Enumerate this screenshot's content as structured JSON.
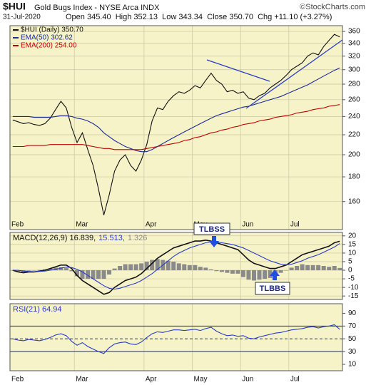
{
  "chart_data": [
    {
      "type": "line",
      "symbol": "$HUI",
      "title": "Gold Bugs Index - NYSE Arca INDX",
      "source": "©StockCharts.com",
      "date": "31-Jul-2020",
      "quote": "Open 345.40  High 352.13  Low 343.34  Close 350.70  Chg +11.10 (+3.27%)",
      "log_scale": true,
      "grid": true,
      "legend_layout": "column",
      "categories": [
        "Feb",
        null,
        null,
        null,
        null,
        null,
        null,
        null,
        null,
        null,
        null,
        null,
        "Mar",
        null,
        null,
        null,
        null,
        null,
        null,
        null,
        null,
        null,
        null,
        null,
        null,
        "Apr",
        null,
        null,
        null,
        null,
        null,
        null,
        null,
        null,
        "May",
        null,
        null,
        null,
        null,
        null,
        null,
        null,
        null,
        "Jun",
        null,
        null,
        null,
        null,
        null,
        null,
        null,
        null,
        "Jul",
        null,
        null,
        null,
        null,
        null,
        null,
        null,
        null,
        null
      ],
      "ylim": [
        140,
        370
      ],
      "yticks": [
        160,
        180,
        200,
        220,
        240,
        260,
        280,
        300,
        320,
        340,
        360
      ],
      "series": [
        {
          "name": "$HUI (Daily) 350.70",
          "color": "#111111",
          "values": [
            236,
            234,
            232,
            233,
            231,
            230,
            232,
            238,
            248,
            258,
            250,
            228,
            212,
            222,
            205,
            190,
            170,
            150,
            165,
            185,
            195,
            200,
            190,
            185,
            195,
            210,
            235,
            250,
            248,
            258,
            265,
            270,
            268,
            272,
            278,
            275,
            285,
            295,
            285,
            280,
            270,
            272,
            268,
            270,
            262,
            260,
            265,
            268,
            275,
            280,
            285,
            292,
            300,
            305,
            310,
            320,
            325,
            322,
            335,
            345,
            355,
            350.7
          ]
        },
        {
          "name": "EMA(50) 302.62",
          "color": "#1c2a99",
          "values": [
            240,
            240,
            240,
            240,
            239,
            239,
            239,
            239,
            240,
            241,
            241,
            240,
            238,
            237,
            235,
            232,
            228,
            222,
            218,
            214,
            211,
            208,
            206,
            204,
            203,
            203,
            205,
            208,
            211,
            214,
            217,
            220,
            223,
            226,
            229,
            232,
            235,
            238,
            241,
            243,
            245,
            247,
            249,
            251,
            252,
            254,
            256,
            258,
            260,
            262,
            264,
            267,
            270,
            273,
            276,
            279,
            283,
            287,
            291,
            295,
            299,
            302.62
          ]
        },
        {
          "name": "EMA(200) 254.00",
          "color": "#c00000",
          "values": [
            208,
            208,
            208,
            209,
            209,
            209,
            209,
            210,
            210,
            210,
            210,
            210,
            210,
            210,
            209,
            208,
            207,
            206,
            206,
            205,
            205,
            205,
            205,
            205,
            205,
            206,
            207,
            208,
            209,
            210,
            211,
            212,
            214,
            215,
            217,
            218,
            220,
            222,
            223,
            225,
            226,
            228,
            229,
            231,
            232,
            233,
            235,
            236,
            237,
            239,
            240,
            241,
            242,
            244,
            245,
            246,
            248,
            249,
            250,
            252,
            253,
            254
          ]
        }
      ]
    },
    {
      "type": "line",
      "grid": true,
      "legend_layout": "row",
      "annotations": [
        "TLBSS",
        "TLBBS"
      ],
      "ylim": [
        -17,
        22
      ],
      "yticks": [
        -15,
        -10,
        -5,
        0,
        5,
        10,
        15,
        20
      ],
      "series": [
        {
          "name": "MACD(12,26,9) 16.839,",
          "color": "#111111",
          "kind": "line",
          "values": [
            0,
            -1,
            -1.5,
            -1,
            -1,
            -0.5,
            0,
            1,
            2,
            3,
            3,
            1,
            -3,
            -6,
            -8,
            -10,
            -12,
            -14,
            -13,
            -10,
            -8,
            -6,
            -5,
            -4,
            -2,
            1,
            4,
            7,
            9,
            11,
            13,
            14,
            15,
            16,
            17,
            17,
            17.5,
            17,
            16,
            15,
            14,
            13,
            12,
            9,
            6,
            4,
            3,
            2,
            1,
            1,
            2,
            3,
            5,
            7,
            9,
            10,
            11,
            12,
            13,
            14,
            16,
            16.839
          ]
        },
        {
          "name": "15.513,",
          "color": "#2a3cc8",
          "kind": "line",
          "values": [
            0,
            0,
            -0.5,
            -0.7,
            -0.8,
            -0.7,
            -0.5,
            0,
            0.5,
            1.2,
            1.8,
            1.6,
            0.5,
            -1,
            -3,
            -5,
            -7,
            -9,
            -10.5,
            -11,
            -10.5,
            -9.5,
            -8.5,
            -7.5,
            -6,
            -4,
            -2,
            0.5,
            3,
            5.5,
            8,
            10,
            11.5,
            13,
            14,
            15,
            16,
            16.5,
            16.5,
            16,
            15.5,
            15,
            14,
            13,
            11.5,
            10,
            8.5,
            7,
            5.5,
            4.5,
            3.5,
            3.2,
            3.5,
            4.5,
            5.5,
            7,
            8,
            9,
            10.5,
            12,
            13.5,
            15.513
          ]
        },
        {
          "name": "1.326",
          "color": "#8a8a8a",
          "kind": "bar",
          "values": [
            0,
            -1,
            -1,
            -0.3,
            -0.2,
            0.2,
            0.5,
            1,
            1.5,
            1.8,
            1.2,
            -0.6,
            -3.5,
            -5,
            -5,
            -5,
            -5,
            -5,
            -2.5,
            1,
            2.5,
            3.5,
            3.5,
            3.5,
            4,
            5,
            6,
            6.5,
            6,
            5.5,
            5,
            4,
            3.5,
            3,
            3,
            2,
            1.5,
            0.5,
            -0.5,
            -1,
            -1.5,
            -2,
            -2,
            -4,
            -5.5,
            -6,
            -5.5,
            -5,
            -4.5,
            -3.5,
            -1.5,
            -0.2,
            1.5,
            2.5,
            3.5,
            3,
            3,
            3,
            2.5,
            2,
            2.5,
            1.326
          ]
        }
      ]
    },
    {
      "type": "line",
      "grid": false,
      "legend_layout": "row",
      "ylim": [
        0,
        105
      ],
      "yticks": [
        10,
        30,
        50,
        70,
        90
      ],
      "reference_lines": [
        30,
        50,
        70
      ],
      "series": [
        {
          "name": "RSI(21) 64.94",
          "color": "#2a3cc8",
          "kind": "line",
          "values": [
            50,
            48,
            47,
            49,
            48,
            47,
            49,
            52,
            56,
            58,
            55,
            46,
            40,
            44,
            38,
            34,
            30,
            27,
            36,
            42,
            44,
            45,
            42,
            41,
            45,
            52,
            58,
            61,
            60,
            62,
            64,
            64,
            63,
            64,
            65,
            63,
            66,
            68,
            62,
            58,
            55,
            56,
            54,
            55,
            51,
            50,
            53,
            55,
            57,
            59,
            60,
            62,
            64,
            65,
            66,
            68,
            69,
            67,
            69,
            70,
            72,
            64.94
          ]
        }
      ]
    }
  ]
}
